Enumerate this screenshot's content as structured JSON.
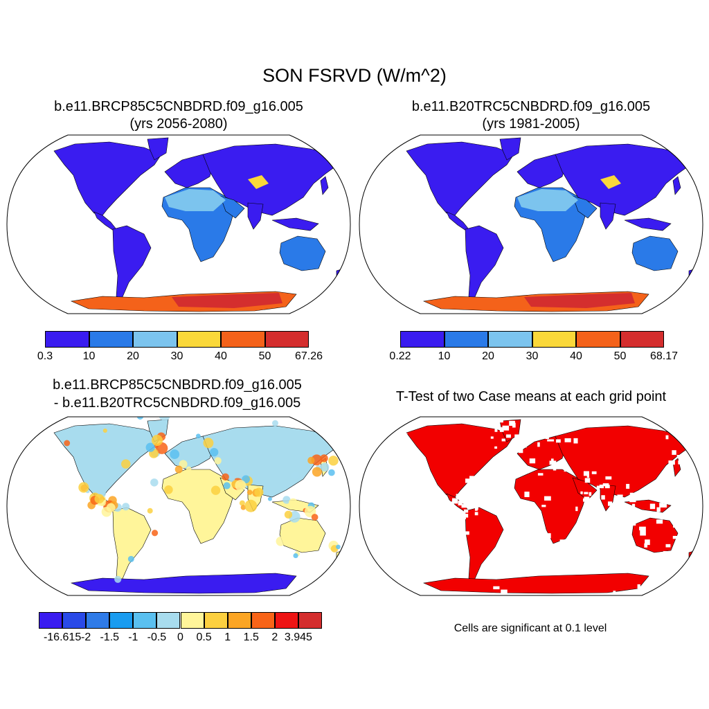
{
  "figure": {
    "title": "SON FSRVD (W/m^2)"
  },
  "panels": [
    {
      "id": "case1",
      "title_line1": "b.e11.BRCP85C5CNBDRD.f09_g16.005",
      "title_line2": "(yrs 2056-2080)",
      "colorbar": {
        "colors": [
          "#3a1cf0",
          "#2a7ae8",
          "#7cc4ee",
          "#fad83a",
          "#f4621a",
          "#d42e2e"
        ],
        "tick_labels": [
          "0.3",
          "10",
          "20",
          "30",
          "40",
          "50",
          "67.26"
        ]
      }
    },
    {
      "id": "case2",
      "title_line1": "b.e11.B20TRC5CNBDRD.f09_g16.005",
      "title_line2": "(yrs 1981-2005)",
      "colorbar": {
        "colors": [
          "#3a1cf0",
          "#2a7ae8",
          "#7cc4ee",
          "#fad83a",
          "#f4621a",
          "#d42e2e"
        ],
        "tick_labels": [
          "0.22",
          "10",
          "20",
          "30",
          "40",
          "50",
          "68.17"
        ]
      }
    },
    {
      "id": "difference",
      "title_line1": "b.e11.BRCP85C5CNBDRD.f09_g16.005",
      "title_line2": "- b.e11.B20TRC5CNBDRD.f09_g16.005",
      "colorbar": {
        "colors": [
          "#3a1cf0",
          "#2a4ae8",
          "#2f7be8",
          "#1a9cf0",
          "#5ac0f0",
          "#a8dcee",
          "#fff59a",
          "#fcd040",
          "#fba524",
          "#f86418",
          "#ee1414",
          "#d42e2e"
        ],
        "tick_labels": [
          "-16.615",
          "-2",
          "-1.5",
          "-1",
          "-0.5",
          "0",
          "0.5",
          "1",
          "1.5",
          "2",
          "3.945"
        ]
      }
    },
    {
      "id": "ttest",
      "title_line1": "T-Test of two Case means at each grid point",
      "footnote": "Cells are significant at 0.1 level",
      "significant_color": "#f20000"
    }
  ]
}
